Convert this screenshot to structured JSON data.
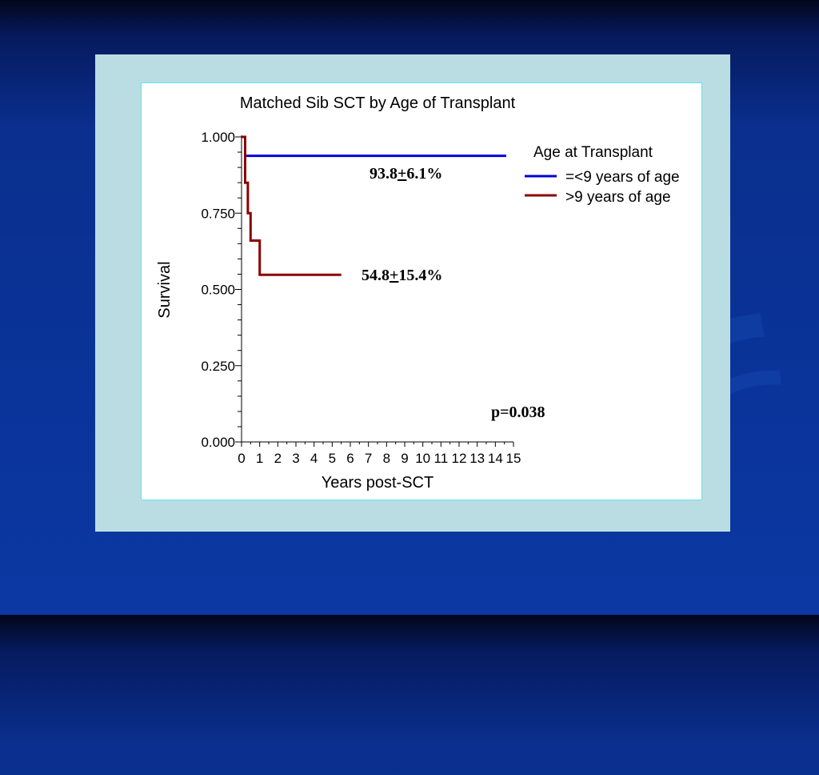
{
  "chart_data": {
    "type": "line",
    "title": "Matched Sib SCT by Age of Transplant",
    "xlabel": "Years post-SCT",
    "ylabel": "Survival",
    "xlim": [
      0,
      15
    ],
    "ylim": [
      0,
      1
    ],
    "x_ticks": [
      "0",
      "1",
      "2",
      "3",
      "4",
      "5",
      "6",
      "7",
      "8",
      "9",
      "10",
      "11",
      "12",
      "13",
      "14",
      "15"
    ],
    "y_ticks": [
      "0.000",
      "0.250",
      "0.500",
      "0.750",
      "1.000"
    ],
    "y_tick_values": [
      0,
      0.25,
      0.5,
      0.75,
      1.0
    ],
    "legend_title": "Age at Transplant",
    "legend_position": "top-right",
    "grid": false,
    "step": true,
    "series": [
      {
        "name": "=<9 years of age",
        "color": "#0000dd",
        "x": [
          0,
          0.2,
          0.2,
          14.6
        ],
        "y": [
          1.0,
          1.0,
          0.938,
          0.938
        ]
      },
      {
        "name": ">9 years of age",
        "color": "#8b0000",
        "x": [
          0,
          0.2,
          0.2,
          0.35,
          0.35,
          0.5,
          0.5,
          1.0,
          1.0,
          5.5
        ],
        "y": [
          1.0,
          1.0,
          0.85,
          0.85,
          0.75,
          0.75,
          0.66,
          0.66,
          0.548,
          0.548
        ]
      }
    ],
    "annotations": [
      {
        "label": "93.8+6.1%",
        "parts": [
          "93.8",
          "+",
          "6.1%"
        ]
      },
      {
        "label": "54.8+15.4%",
        "parts": [
          "54.8",
          "+",
          "15.4%"
        ]
      },
      {
        "label": "p=0.038"
      }
    ]
  }
}
